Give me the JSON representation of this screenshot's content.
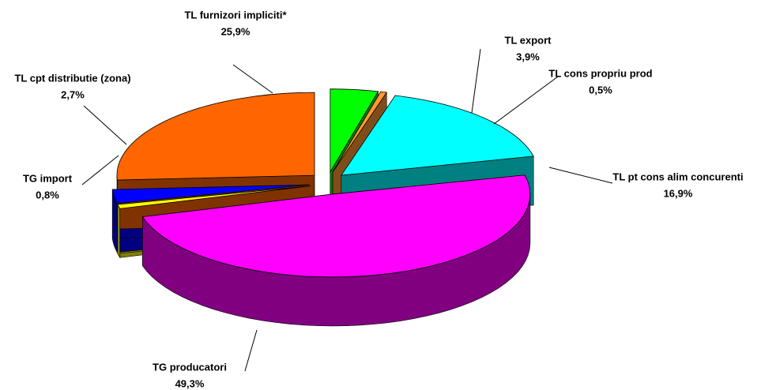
{
  "chart_data": {
    "type": "pie",
    "categories": [
      "TL export",
      "TL cons propriu prod",
      "TL pt cons alim concurenti",
      "TG producatori",
      "TG import",
      "TL cpt distributie (zona)",
      "TL furnizori impliciti*"
    ],
    "values": [
      3.9,
      0.5,
      16.9,
      49.3,
      0.8,
      2.7,
      25.9
    ],
    "value_labels": [
      "3,9%",
      "0,5%",
      "16,9%",
      "49,3%",
      "0,8%",
      "2,7%",
      "25,9%"
    ],
    "colors": [
      "#00FF00",
      "#FF9933",
      "#00FFFF",
      "#FF00FF",
      "#FFFF00",
      "#0000FF",
      "#FF6600"
    ]
  }
}
